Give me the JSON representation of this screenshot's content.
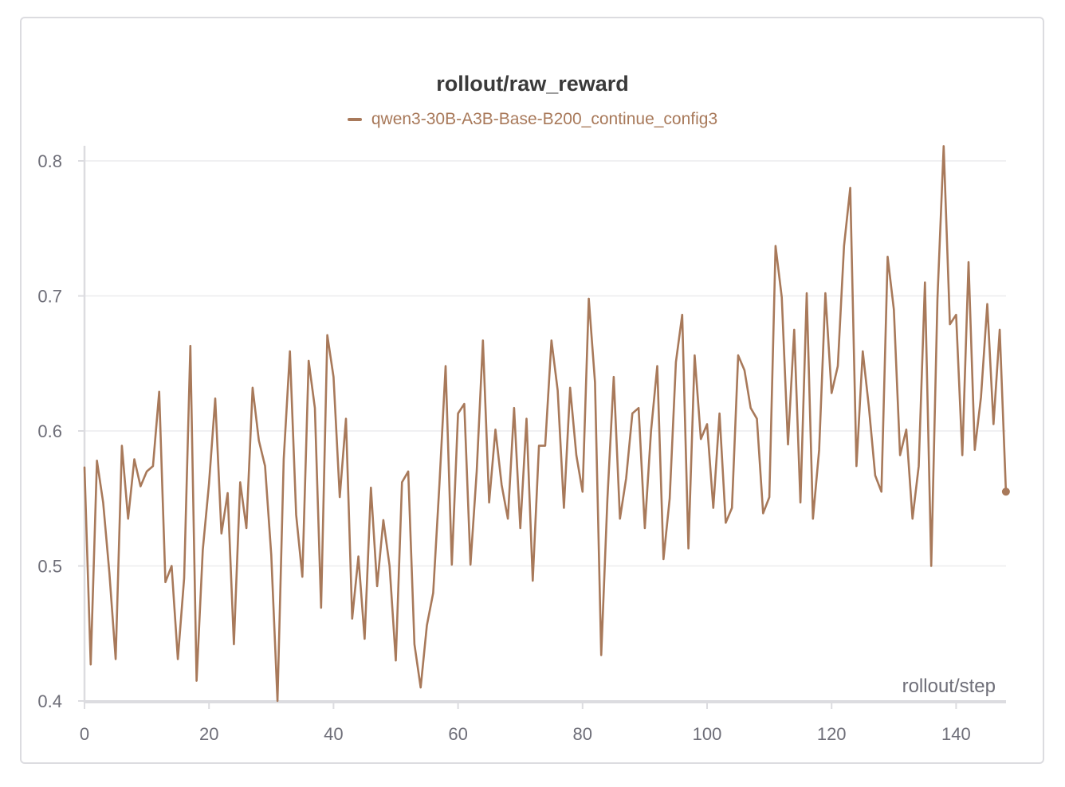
{
  "chart_data": {
    "type": "line",
    "title": "rollout/raw_reward",
    "xlabel": "rollout/step",
    "ylabel": "",
    "xlim": [
      0,
      148
    ],
    "ylim": [
      0.4,
      0.81
    ],
    "xticks": [
      0,
      20,
      40,
      60,
      80,
      100,
      120,
      140
    ],
    "yticks": [
      0.4,
      0.5,
      0.6,
      0.7,
      0.8
    ],
    "grid": true,
    "legend": "top-center",
    "colors": {
      "series": "#a8795a",
      "grid": "#ececee",
      "axis": "#dcdce0",
      "text": "#6e6e78"
    },
    "series": [
      {
        "name": "qwen3-30B-A3B-Base-B200_continue_config3",
        "x": [
          0,
          1,
          2,
          3,
          4,
          5,
          6,
          7,
          8,
          9,
          10,
          11,
          12,
          13,
          14,
          15,
          16,
          17,
          18,
          19,
          20,
          21,
          22,
          23,
          24,
          25,
          26,
          27,
          28,
          29,
          30,
          31,
          32,
          33,
          34,
          35,
          36,
          37,
          38,
          39,
          40,
          41,
          42,
          43,
          44,
          45,
          46,
          47,
          48,
          49,
          50,
          51,
          52,
          53,
          54,
          55,
          56,
          57,
          58,
          59,
          60,
          61,
          62,
          63,
          64,
          65,
          66,
          67,
          68,
          69,
          70,
          71,
          72,
          73,
          74,
          75,
          76,
          77,
          78,
          79,
          80,
          81,
          82,
          83,
          84,
          85,
          86,
          87,
          88,
          89,
          90,
          91,
          92,
          93,
          94,
          95,
          96,
          97,
          98,
          99,
          100,
          101,
          102,
          103,
          104,
          105,
          106,
          107,
          108,
          109,
          110,
          111,
          112,
          113,
          114,
          115,
          116,
          117,
          118,
          119,
          120,
          121,
          122,
          123,
          124,
          125,
          126,
          127,
          128,
          129,
          130,
          131,
          132,
          133,
          134,
          135,
          136,
          137,
          138,
          139,
          140,
          141,
          142,
          143,
          144,
          145,
          146,
          147,
          148
        ],
        "y": [
          0.573,
          0.427,
          0.578,
          0.547,
          0.495,
          0.431,
          0.589,
          0.535,
          0.579,
          0.559,
          0.57,
          0.574,
          0.629,
          0.488,
          0.5,
          0.431,
          0.491,
          0.663,
          0.415,
          0.512,
          0.561,
          0.624,
          0.524,
          0.554,
          0.442,
          0.562,
          0.528,
          0.632,
          0.593,
          0.574,
          0.508,
          0.4,
          0.579,
          0.659,
          0.538,
          0.492,
          0.652,
          0.617,
          0.469,
          0.671,
          0.64,
          0.551,
          0.609,
          0.461,
          0.507,
          0.446,
          0.558,
          0.485,
          0.534,
          0.5,
          0.43,
          0.562,
          0.57,
          0.442,
          0.41,
          0.456,
          0.48,
          0.56,
          0.648,
          0.501,
          0.613,
          0.62,
          0.501,
          0.57,
          0.667,
          0.547,
          0.601,
          0.56,
          0.535,
          0.617,
          0.528,
          0.609,
          0.489,
          0.589,
          0.589,
          0.667,
          0.63,
          0.543,
          0.632,
          0.582,
          0.555,
          0.698,
          0.636,
          0.434,
          0.55,
          0.64,
          0.535,
          0.565,
          0.613,
          0.617,
          0.528,
          0.6,
          0.648,
          0.505,
          0.55,
          0.651,
          0.686,
          0.513,
          0.656,
          0.594,
          0.605,
          0.543,
          0.613,
          0.532,
          0.543,
          0.656,
          0.645,
          0.617,
          0.609,
          0.539,
          0.551,
          0.737,
          0.699,
          0.59,
          0.675,
          0.547,
          0.702,
          0.535,
          0.586,
          0.702,
          0.628,
          0.648,
          0.737,
          0.78,
          0.574,
          0.659,
          0.617,
          0.567,
          0.555,
          0.729,
          0.69,
          0.582,
          0.601,
          0.535,
          0.574,
          0.71,
          0.5,
          0.698,
          0.811,
          0.679,
          0.686,
          0.582,
          0.725,
          0.586,
          0.625,
          0.694,
          0.605,
          0.675,
          0.555
        ]
      }
    ]
  }
}
